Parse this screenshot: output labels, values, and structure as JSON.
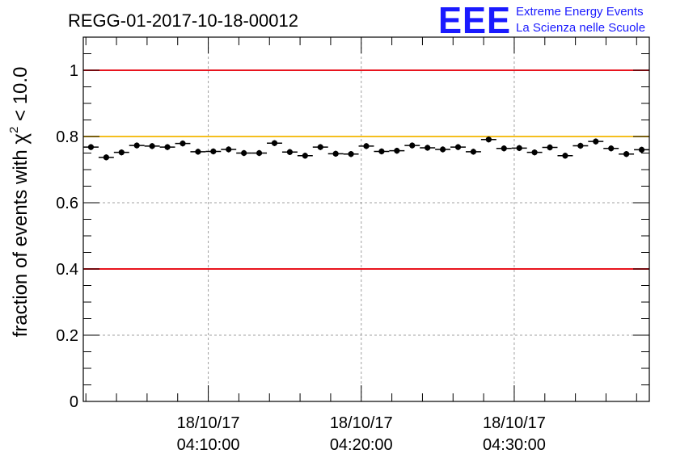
{
  "chart_data": {
    "type": "scatter",
    "title": "REGG-01-2017-10-18-00012",
    "xlabel": "",
    "ylabel_prefix": "fraction of events with ",
    "ylabel_symbol": "χ",
    "ylabel_sup": "2",
    "ylabel_suffix": " < 10.0",
    "ylim": [
      0,
      1.1
    ],
    "yticks": [
      {
        "value": 0,
        "label": "0"
      },
      {
        "value": 0.2,
        "label": "0.2"
      },
      {
        "value": 0.4,
        "label": "0.4"
      },
      {
        "value": 0.6,
        "label": "0.6"
      },
      {
        "value": 0.8,
        "label": "0.8"
      },
      {
        "value": 1.0,
        "label": "1"
      }
    ],
    "xlim_minutes": [
      1.83,
      38.83
    ],
    "xticks": [
      {
        "minutes": 10,
        "date": "18/10/17",
        "time": "04:10:00"
      },
      {
        "minutes": 20,
        "date": "18/10/17",
        "time": "04:20:00"
      },
      {
        "minutes": 30,
        "date": "18/10/17",
        "time": "04:30:00"
      }
    ],
    "bin_width_minutes": 1.0,
    "x_minutes": [
      2.33,
      3.33,
      4.33,
      5.33,
      6.33,
      7.33,
      8.33,
      9.33,
      10.33,
      11.33,
      12.33,
      13.33,
      14.33,
      15.33,
      16.33,
      17.33,
      18.33,
      19.33,
      20.33,
      21.33,
      22.33,
      23.33,
      24.33,
      25.33,
      26.33,
      27.33,
      28.33,
      29.33,
      30.33,
      31.33,
      32.33,
      33.33,
      34.33,
      35.33,
      36.33,
      37.33,
      38.33
    ],
    "values": [
      0.768,
      0.737,
      0.752,
      0.773,
      0.771,
      0.768,
      0.779,
      0.754,
      0.755,
      0.761,
      0.75,
      0.75,
      0.78,
      0.753,
      0.742,
      0.768,
      0.748,
      0.747,
      0.771,
      0.755,
      0.757,
      0.773,
      0.766,
      0.761,
      0.768,
      0.754,
      0.791,
      0.764,
      0.765,
      0.752,
      0.767,
      0.742,
      0.772,
      0.785,
      0.764,
      0.747,
      0.76
    ],
    "errors": [
      0.009,
      0.009,
      0.009,
      0.009,
      0.009,
      0.009,
      0.009,
      0.009,
      0.009,
      0.009,
      0.009,
      0.009,
      0.009,
      0.009,
      0.009,
      0.009,
      0.009,
      0.009,
      0.009,
      0.009,
      0.009,
      0.009,
      0.009,
      0.009,
      0.009,
      0.009,
      0.009,
      0.009,
      0.009,
      0.009,
      0.009,
      0.009,
      0.009,
      0.009,
      0.009,
      0.009,
      0.009
    ],
    "reference_lines": [
      {
        "value": 1.0,
        "color": "#e8141e"
      },
      {
        "value": 0.8,
        "color": "#f5bf1e"
      },
      {
        "value": 0.4,
        "color": "#e8141e"
      }
    ],
    "grid": true
  },
  "logo": {
    "mark": "EEE",
    "line1": "Extreme Energy Events",
    "line2": "La Scienza nelle Scuole",
    "color": "#1a1aff"
  }
}
